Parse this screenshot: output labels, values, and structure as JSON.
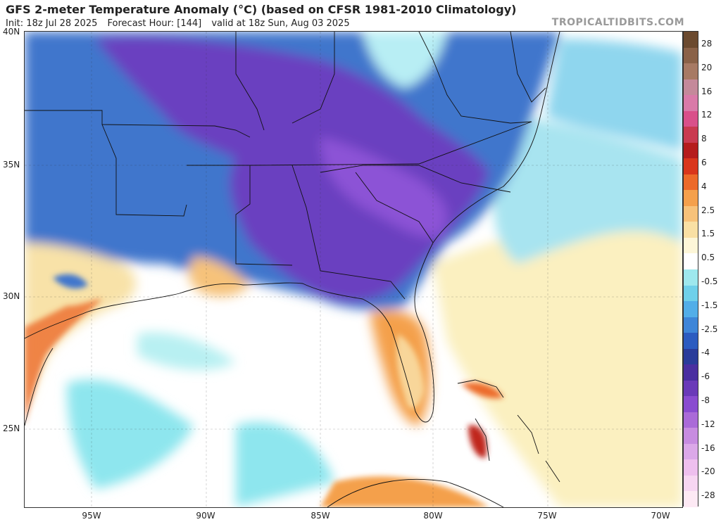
{
  "header": {
    "title": "GFS 2-meter Temperature Anomaly (°C) (based on CFSR 1981-2010 Climatology)",
    "init": "Init: 18z Jul 28 2025",
    "forecast_hour": "Forecast Hour: [144]",
    "valid": "valid at 18z Sun, Aug 03 2025",
    "brand": "TROPICALTIDBITS.COM"
  },
  "axes": {
    "lat_labels": [
      "40N",
      "35N",
      "30N",
      "25N"
    ],
    "lon_labels": [
      "95W",
      "90W",
      "85W",
      "80W",
      "75W",
      "70W"
    ]
  },
  "colorbar": {
    "labels": [
      "28",
      "20",
      "16",
      "12",
      "8",
      "6",
      "4",
      "2.5",
      "1.5",
      "0.5",
      "-0.5",
      "-1.5",
      "-2.5",
      "-4",
      "-6",
      "-8",
      "-12",
      "-16",
      "-20",
      "-28"
    ],
    "colors": [
      "#6b4a2f",
      "#8a6248",
      "#a77a64",
      "#c4899a",
      "#d97aa8",
      "#d9508a",
      "#c93a50",
      "#b51c1c",
      "#d9361c",
      "#ec6a2a",
      "#f4a04c",
      "#f7c27a",
      "#f9e0a4",
      "#fdf6d8",
      "#ffffff",
      "#9ee8ee",
      "#6fd0ea",
      "#52aee8",
      "#3e86d8",
      "#2c5cc0",
      "#2a3c9a",
      "#4a2fa0",
      "#6a3ab8",
      "#8a4cd0",
      "#aa6ad8",
      "#c78ce0",
      "#dba8e8",
      "#eebfee",
      "#f7d6f2",
      "#fde9f4"
    ]
  }
}
